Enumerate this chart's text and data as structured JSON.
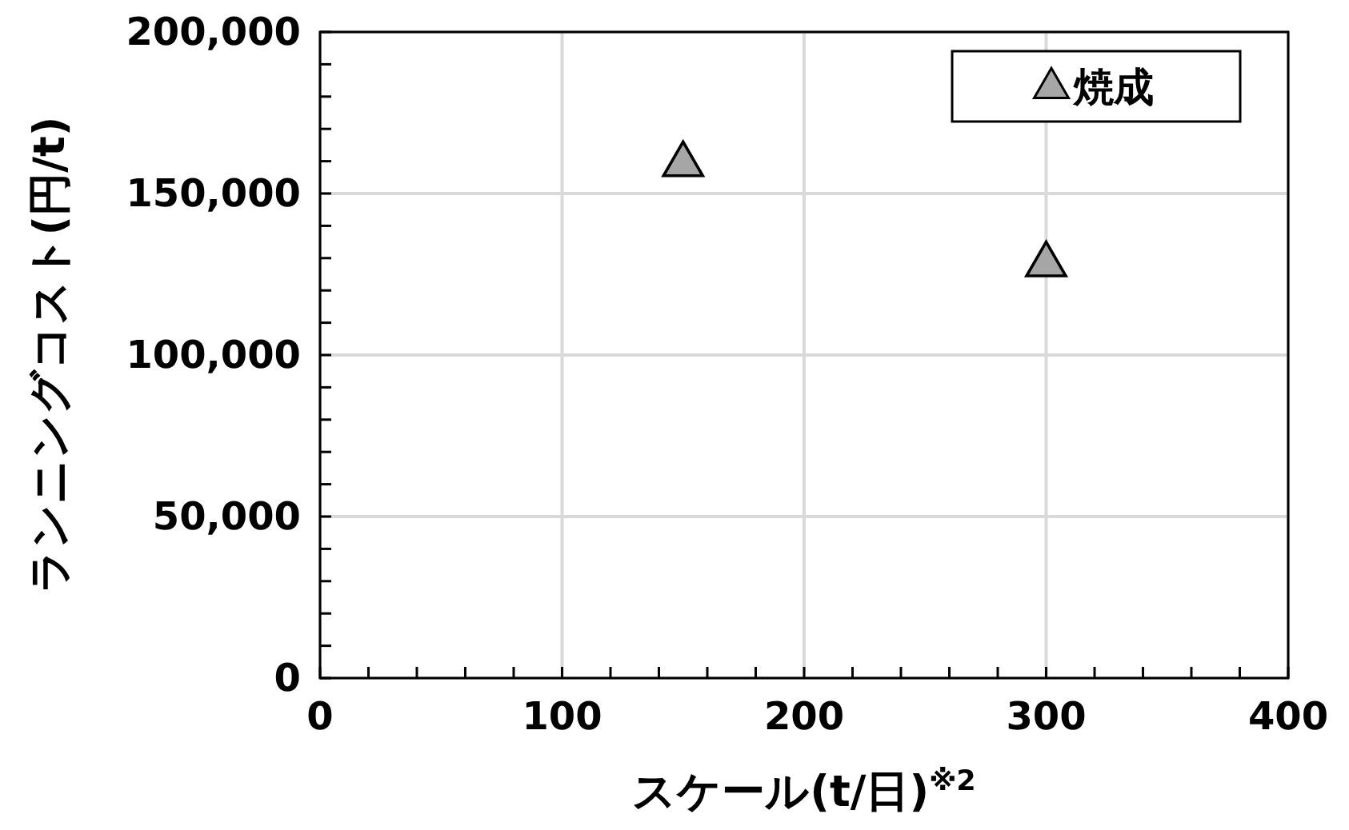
{
  "chart_data": {
    "type": "scatter",
    "xlabel": "スケール(t/日)$^{※2}$",
    "ylabel": "ランニングコスト(円/t)",
    "x": [
      150,
      300
    ],
    "series": [
      {
        "name": "焼成",
        "color": "#a6a6a6",
        "values": [
          159000,
          128000
        ]
      }
    ],
    "xlim": [
      0,
      400
    ],
    "xticks": [
      0,
      {
        "value": 20,
        "label": null
      },
      {
        "value": 40,
        "label": null
      },
      {
        "value": 60,
        "label": null
      },
      {
        "value": 80,
        "label": null
      },
      100,
      {
        "value": 120,
        "label": null
      },
      {
        "value": 140,
        "label": null
      },
      {
        "value": 160,
        "label": null
      },
      {
        "value": 180,
        "label": null
      },
      200,
      {
        "value": 220,
        "label": null
      },
      {
        "value": 240,
        "label": null
      },
      {
        "value": 260,
        "label": null
      },
      {
        "value": 280,
        "label": null
      },
      300,
      {
        "value": 320,
        "label": null
      },
      {
        "value": 340,
        "label": null
      },
      {
        "value": 360,
        "label": null
      },
      {
        "value": 380,
        "label": null
      },
      400
    ],
    "ylim": [
      0,
      200000
    ],
    "yticks": [
      {
        "value": 0,
        "label": "0"
      },
      {
        "value": 10000,
        "label": null
      },
      {
        "value": 20000,
        "label": null
      },
      {
        "value": 30000,
        "label": null
      },
      {
        "value": 40000,
        "label": null
      },
      {
        "value": 50000,
        "label": "50,000"
      },
      {
        "value": 60000,
        "label": null
      },
      {
        "value": 70000,
        "label": null
      },
      {
        "value": 80000,
        "label": null
      },
      {
        "value": 90000,
        "label": null
      },
      {
        "value": 100000,
        "label": "100,000"
      },
      {
        "value": 110000,
        "label": null
      },
      {
        "value": 120000,
        "label": null
      },
      {
        "value": 130000,
        "label": null
      },
      {
        "value": 140000,
        "label": null
      },
      {
        "value": 150000,
        "label": "150,000"
      },
      {
        "value": 160000,
        "label": null
      },
      {
        "value": 170000,
        "label": null
      },
      {
        "value": 180000,
        "label": null
      },
      {
        "value": 190000,
        "label": null
      },
      {
        "value": 200000,
        "label": "200,000"
      }
    ],
    "grid": true,
    "legend": "top right",
    "marker": "triangle"
  }
}
